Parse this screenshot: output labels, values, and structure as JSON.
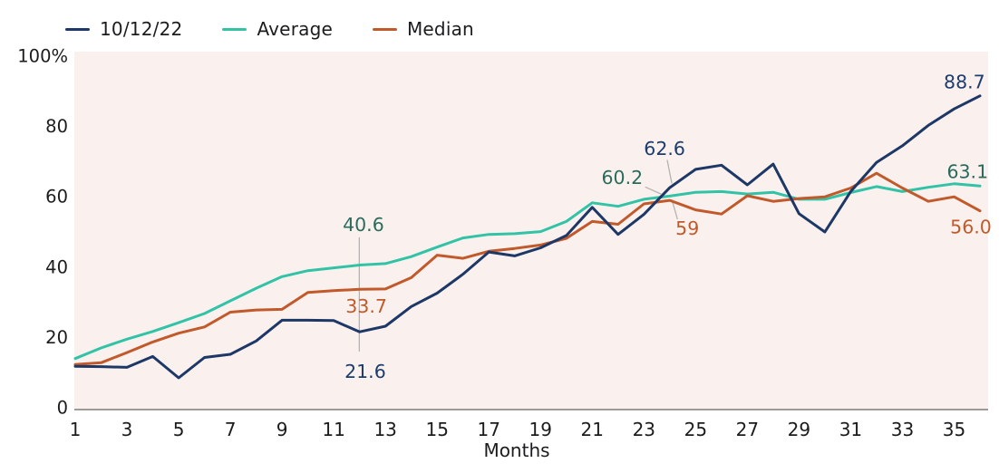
{
  "legend": {
    "items": [
      {
        "label": "10/12/22",
        "color": "#1d3766"
      },
      {
        "label": "Average",
        "color": "#32c3a7"
      },
      {
        "label": "Median",
        "color": "#c2592b"
      }
    ]
  },
  "chart_data": {
    "type": "line",
    "title": "",
    "xlabel": "Months",
    "ylabel": "",
    "xlim": [
      1,
      36
    ],
    "ylim": [
      0,
      100
    ],
    "grid": false,
    "legend_position": "top-left",
    "plot_bg": "#faf1ee",
    "axis_line_color": "#7d7b79",
    "tick_text_color": "#1c1c1e",
    "leader_color": "#b5b3b1",
    "x": [
      1,
      2,
      3,
      4,
      5,
      6,
      7,
      8,
      9,
      10,
      11,
      12,
      13,
      14,
      15,
      16,
      17,
      18,
      19,
      20,
      21,
      22,
      23,
      24,
      25,
      26,
      27,
      28,
      29,
      30,
      31,
      32,
      33,
      34,
      35,
      36
    ],
    "x_ticks": [
      1,
      3,
      5,
      7,
      9,
      11,
      13,
      15,
      17,
      19,
      21,
      23,
      25,
      27,
      29,
      31,
      33,
      35
    ],
    "y_ticks": [
      {
        "value": 0,
        "label": "0"
      },
      {
        "value": 20,
        "label": "20"
      },
      {
        "value": 40,
        "label": "40"
      },
      {
        "value": 60,
        "label": "60"
      },
      {
        "value": 80,
        "label": "80"
      },
      {
        "value": 100,
        "label": "100%"
      }
    ],
    "series": [
      {
        "name": "Average",
        "color": "#32c3a7",
        "values": [
          14.0,
          17.0,
          19.5,
          21.7,
          24.2,
          26.8,
          30.4,
          34.0,
          37.3,
          39.0,
          39.8,
          40.6,
          41.0,
          43.0,
          45.7,
          48.3,
          49.3,
          49.5,
          50.1,
          53.0,
          58.3,
          57.3,
          59.3,
          60.2,
          61.3,
          61.5,
          60.8,
          61.3,
          59.3,
          59.3,
          61.2,
          62.9,
          61.5,
          62.7,
          63.7,
          63.1
        ]
      },
      {
        "name": "Median",
        "color": "#c2592b",
        "values": [
          12.3,
          12.8,
          15.7,
          18.7,
          21.2,
          23.0,
          27.2,
          27.8,
          28.0,
          32.8,
          33.3,
          33.7,
          33.8,
          37.0,
          43.4,
          42.5,
          44.5,
          45.3,
          46.3,
          48.2,
          53.0,
          52.2,
          58.0,
          59.0,
          56.3,
          55.1,
          60.3,
          58.7,
          59.5,
          60.0,
          62.5,
          66.7,
          62.5,
          58.7,
          60.0,
          56.0
        ]
      },
      {
        "name": "10/12/22",
        "color": "#1d3766",
        "values": [
          11.8,
          11.7,
          11.5,
          14.6,
          8.5,
          14.3,
          15.2,
          19.0,
          24.9,
          24.9,
          24.8,
          21.6,
          23.2,
          28.8,
          32.6,
          38.0,
          44.3,
          43.2,
          45.5,
          49.0,
          57.0,
          49.3,
          55.0,
          62.6,
          67.8,
          69.0,
          63.4,
          69.3,
          55.2,
          50.0,
          61.5,
          69.8,
          74.5,
          80.3,
          85.0,
          88.7
        ]
      }
    ],
    "annotations": [
      {
        "text": "40.6",
        "series": "Average",
        "month": 12,
        "color": "#2a6b5c",
        "lx": 12.15,
        "ly": 52.0
      },
      {
        "text": "33.7",
        "series": "Median",
        "month": 12,
        "color": "#c05a2a",
        "lx": 12.26,
        "ly": 28.9
      },
      {
        "text": "21.6",
        "series": "10/12/22",
        "month": 12,
        "color": "#1d3c6e",
        "lx": 12.22,
        "ly": 10.3
      },
      {
        "text": "60.2",
        "series": "Average",
        "month": 24,
        "color": "#2a6b5c",
        "lx": 22.16,
        "ly": 65.5
      },
      {
        "text": "62.6",
        "series": "10/12/22",
        "month": 24,
        "color": "#1d3c6e",
        "lx": 23.8,
        "ly": 73.7
      },
      {
        "text": "59",
        "series": "Median",
        "month": 24,
        "color": "#c05a2a",
        "lx": 24.68,
        "ly": 51.0
      },
      {
        "text": "88.7",
        "series": "10/12/22",
        "month": 36,
        "color": "#1d3c6e",
        "lx": 35.4,
        "ly": 92.6
      },
      {
        "text": "63.1",
        "series": "Average",
        "month": 36,
        "color": "#2a6b5c",
        "lx": 35.52,
        "ly": 67.1
      },
      {
        "text": "56.0",
        "series": "Median",
        "month": 36,
        "color": "#c05a2a",
        "lx": 35.65,
        "ly": 51.4
      }
    ],
    "leader_lines": [
      {
        "x1": 11.99,
        "y1": 48.5,
        "x2": 11.99,
        "y2": 16.0
      },
      {
        "x1": 23.05,
        "y1": 62.8,
        "x2": 23.66,
        "y2": 60.8
      },
      {
        "x1": 23.9,
        "y1": 70.5,
        "x2": 24.08,
        "y2": 63.8
      },
      {
        "x1": 24.08,
        "y1": 59.2,
        "x2": 24.3,
        "y2": 53.6
      }
    ]
  }
}
